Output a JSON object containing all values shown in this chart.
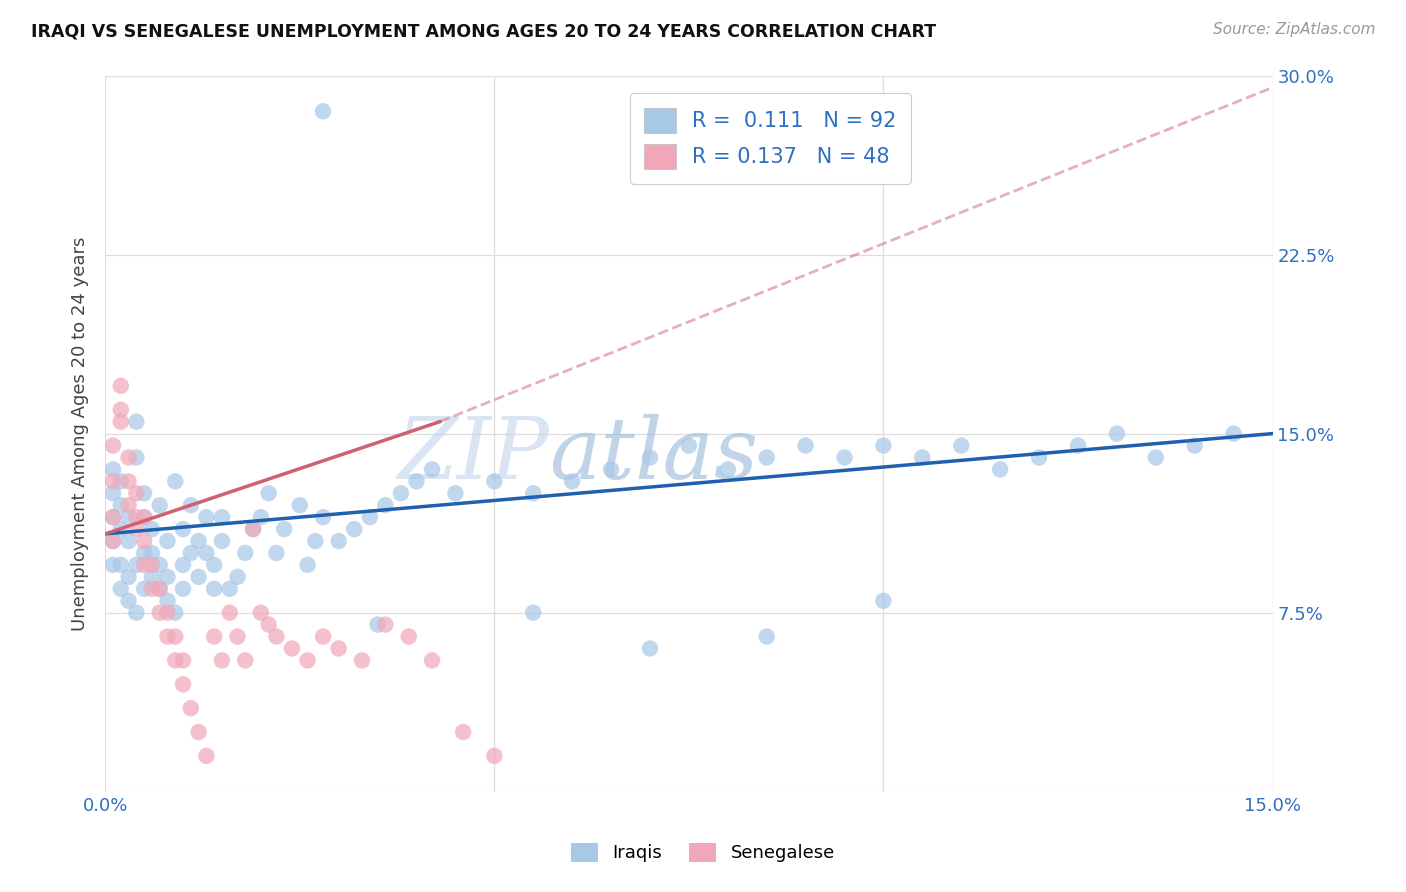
{
  "title": "IRAQI VS SENEGALESE UNEMPLOYMENT AMONG AGES 20 TO 24 YEARS CORRELATION CHART",
  "source": "Source: ZipAtlas.com",
  "ylabel": "Unemployment Among Ages 20 to 24 years",
  "xlim": [
    0.0,
    0.15
  ],
  "ylim": [
    0.0,
    0.3
  ],
  "xticks": [
    0.0,
    0.05,
    0.1,
    0.15
  ],
  "xtick_labels": [
    "0.0%",
    "",
    "",
    "15.0%"
  ],
  "yticks": [
    0.0,
    0.075,
    0.15,
    0.225,
    0.3
  ],
  "ytick_labels": [
    "",
    "7.5%",
    "15.0%",
    "22.5%",
    "30.0%"
  ],
  "iraqis_color": "#a8c8e8",
  "senegalese_color": "#f0a8b8",
  "iraqis_line_color": "#2060b0",
  "senegalese_line_color": "#d06070",
  "iraqis_R": 0.111,
  "senegalese_R": 0.137,
  "iraqis_N": 92,
  "senegalese_N": 48,
  "label_color": "#3070c0",
  "title_color": "#111111",
  "source_color": "#999999",
  "grid_color": "#dddddd",
  "background_color": "#ffffff",
  "iraqis_line_y0": 0.108,
  "iraqis_line_y1": 0.15,
  "senegalese_line_y0": 0.108,
  "senegalese_line_y1_solid": 0.155,
  "senegalese_line_x1_solid": 0.043,
  "senegalese_line_y1_dash": 0.295,
  "iraqi_scatter_x": [
    0.001,
    0.001,
    0.001,
    0.001,
    0.001,
    0.002,
    0.002,
    0.002,
    0.002,
    0.002,
    0.003,
    0.003,
    0.003,
    0.003,
    0.004,
    0.004,
    0.004,
    0.004,
    0.005,
    0.005,
    0.005,
    0.005,
    0.006,
    0.006,
    0.006,
    0.007,
    0.007,
    0.007,
    0.008,
    0.008,
    0.008,
    0.009,
    0.009,
    0.01,
    0.01,
    0.01,
    0.011,
    0.011,
    0.012,
    0.012,
    0.013,
    0.013,
    0.014,
    0.014,
    0.015,
    0.015,
    0.016,
    0.017,
    0.018,
    0.019,
    0.02,
    0.021,
    0.022,
    0.023,
    0.025,
    0.026,
    0.027,
    0.028,
    0.03,
    0.032,
    0.034,
    0.036,
    0.038,
    0.04,
    0.042,
    0.045,
    0.05,
    0.055,
    0.06,
    0.065,
    0.07,
    0.075,
    0.08,
    0.085,
    0.09,
    0.095,
    0.1,
    0.105,
    0.11,
    0.115,
    0.12,
    0.125,
    0.13,
    0.135,
    0.14,
    0.145,
    0.055,
    0.07,
    0.085,
    0.1,
    0.028,
    0.035
  ],
  "iraqi_scatter_y": [
    0.115,
    0.095,
    0.125,
    0.135,
    0.105,
    0.11,
    0.095,
    0.085,
    0.12,
    0.13,
    0.09,
    0.08,
    0.105,
    0.115,
    0.075,
    0.14,
    0.155,
    0.095,
    0.085,
    0.1,
    0.115,
    0.125,
    0.09,
    0.1,
    0.11,
    0.085,
    0.095,
    0.12,
    0.08,
    0.09,
    0.105,
    0.075,
    0.13,
    0.085,
    0.095,
    0.11,
    0.1,
    0.12,
    0.09,
    0.105,
    0.1,
    0.115,
    0.085,
    0.095,
    0.105,
    0.115,
    0.085,
    0.09,
    0.1,
    0.11,
    0.115,
    0.125,
    0.1,
    0.11,
    0.12,
    0.095,
    0.105,
    0.115,
    0.105,
    0.11,
    0.115,
    0.12,
    0.125,
    0.13,
    0.135,
    0.125,
    0.13,
    0.125,
    0.13,
    0.135,
    0.14,
    0.145,
    0.135,
    0.14,
    0.145,
    0.14,
    0.145,
    0.14,
    0.145,
    0.135,
    0.14,
    0.145,
    0.15,
    0.14,
    0.145,
    0.15,
    0.075,
    0.06,
    0.065,
    0.08,
    0.285,
    0.07
  ],
  "sene_scatter_x": [
    0.001,
    0.001,
    0.001,
    0.001,
    0.002,
    0.002,
    0.002,
    0.003,
    0.003,
    0.003,
    0.004,
    0.004,
    0.004,
    0.005,
    0.005,
    0.005,
    0.006,
    0.006,
    0.007,
    0.007,
    0.008,
    0.008,
    0.009,
    0.009,
    0.01,
    0.01,
    0.011,
    0.012,
    0.013,
    0.014,
    0.015,
    0.016,
    0.017,
    0.018,
    0.019,
    0.02,
    0.021,
    0.022,
    0.024,
    0.026,
    0.028,
    0.03,
    0.033,
    0.036,
    0.039,
    0.042,
    0.046,
    0.05
  ],
  "sene_scatter_y": [
    0.13,
    0.115,
    0.105,
    0.145,
    0.16,
    0.17,
    0.155,
    0.14,
    0.12,
    0.13,
    0.11,
    0.125,
    0.115,
    0.105,
    0.095,
    0.115,
    0.085,
    0.095,
    0.075,
    0.085,
    0.065,
    0.075,
    0.055,
    0.065,
    0.045,
    0.055,
    0.035,
    0.025,
    0.015,
    0.065,
    0.055,
    0.075,
    0.065,
    0.055,
    0.11,
    0.075,
    0.07,
    0.065,
    0.06,
    0.055,
    0.065,
    0.06,
    0.055,
    0.07,
    0.065,
    0.055,
    0.025,
    0.015
  ]
}
